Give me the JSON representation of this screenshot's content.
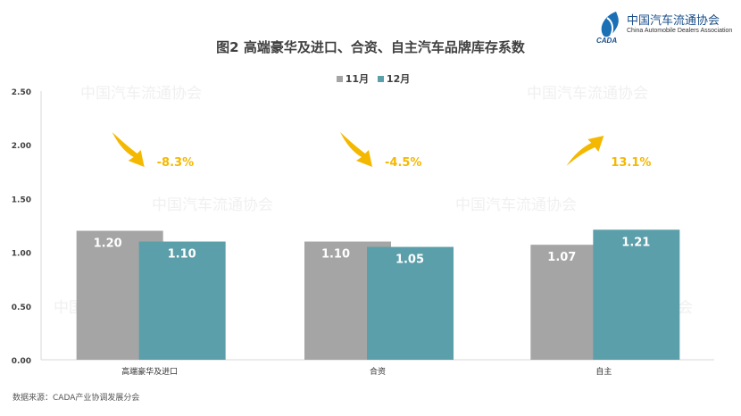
{
  "logo": {
    "cn": "中国汽车流通协会",
    "en": "China Automobile Dealers Association",
    "abbr": "CADA"
  },
  "source": "数据来源：CADA产业协调发展分会",
  "chart_data": {
    "type": "bar",
    "title": "图2  高端豪华及进口、合资、自主汽车品牌库存系数",
    "categories": [
      "高端豪华及进口",
      "合资",
      "自主"
    ],
    "series": [
      {
        "name": "11月",
        "values": [
          1.2,
          1.1,
          1.07
        ],
        "color": "#a5a5a5"
      },
      {
        "name": "12月",
        "values": [
          1.1,
          1.05,
          1.21
        ],
        "color": "#5b9faa"
      }
    ],
    "value_labels": [
      [
        "1.20",
        "1.10",
        "1.07"
      ],
      [
        "1.10",
        "1.05",
        "1.21"
      ]
    ],
    "annotations": [
      {
        "text": "-8.3%",
        "direction": "down"
      },
      {
        "text": "-4.5%",
        "direction": "down"
      },
      {
        "text": "13.1%",
        "direction": "up"
      }
    ],
    "annotation_color": "#f5b800",
    "ylim": [
      0,
      2.5
    ],
    "yticks": [
      "0.00",
      "0.50",
      "1.00",
      "1.50",
      "2.00",
      "2.50"
    ],
    "legend_position": "top",
    "grid": false
  }
}
